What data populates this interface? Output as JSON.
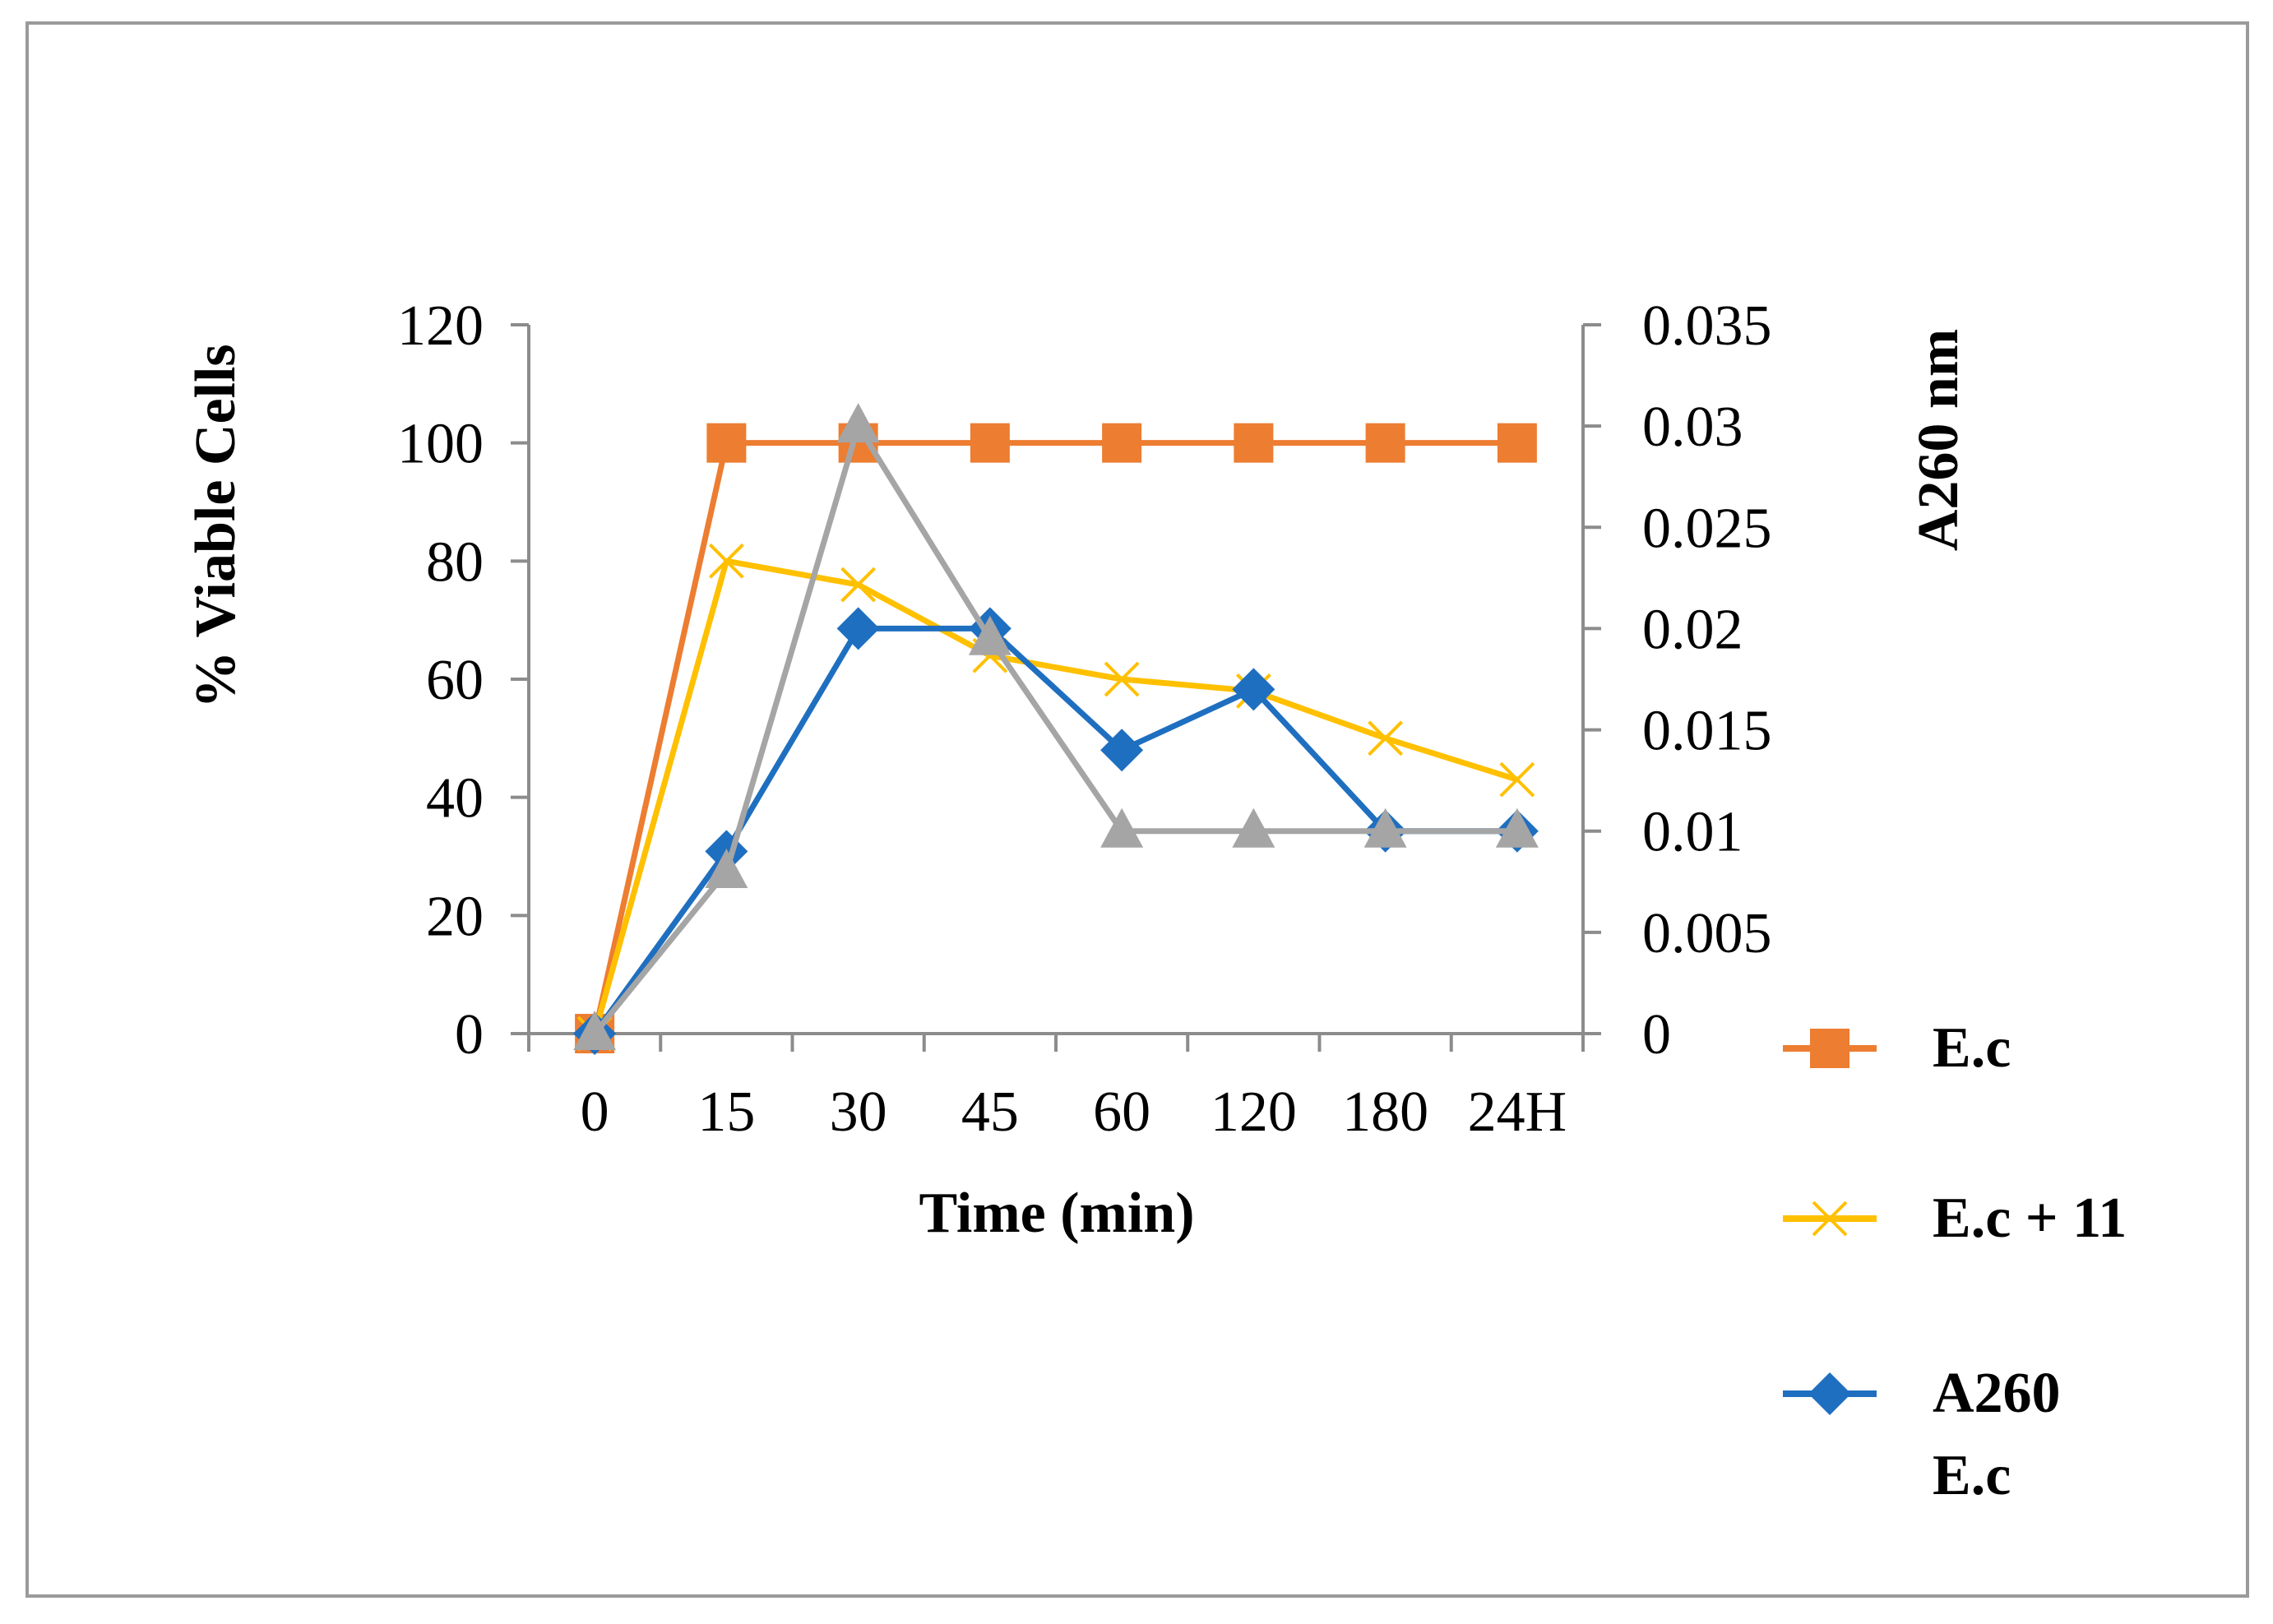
{
  "chart_data": {
    "type": "line",
    "title": "",
    "categories": [
      "0",
      "15",
      "30",
      "45",
      "60",
      "120",
      "180",
      "24H"
    ],
    "xlabel": "Time (min)",
    "ylabel": "% Viable Cells",
    "y2label": "A260 nm",
    "ylim": [
      0,
      120
    ],
    "yticks": [
      "0",
      "20",
      "40",
      "60",
      "80",
      "100",
      "120"
    ],
    "y2lim": [
      0,
      0.035
    ],
    "y2ticks": [
      "0",
      "0.005",
      "0.01",
      "0.015",
      "0.02",
      "0.025",
      "0.03",
      "0.035"
    ],
    "legend_position": "right",
    "series": [
      {
        "name": "E.c",
        "axis": "left",
        "color": "#ED7D31",
        "marker": "square",
        "values": [
          0,
          100,
          100,
          100,
          100,
          100,
          100,
          100
        ]
      },
      {
        "name": "E.c + 11",
        "axis": "left",
        "color": "#FFC000",
        "marker": "x",
        "values": [
          0,
          80,
          76,
          64,
          60,
          58,
          50,
          43
        ]
      },
      {
        "name": "A260 E.c",
        "legend_lines": [
          "A260",
          "E.c"
        ],
        "axis": "right",
        "color": "#1F6FC0",
        "marker": "diamond",
        "values": [
          0,
          0.009,
          0.02,
          0.02,
          0.014,
          0.017,
          0.01,
          0.01
        ]
      },
      {
        "name": "",
        "axis": "right",
        "color": "#A5A5A5",
        "marker": "triangle",
        "values": [
          0,
          0.008,
          0.03,
          0.0195,
          0.01,
          0.01,
          0.01,
          0.01
        ]
      }
    ]
  }
}
